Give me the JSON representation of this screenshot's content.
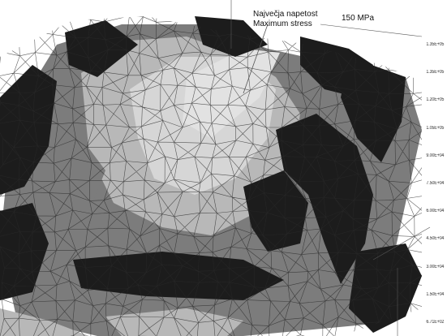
{
  "annotation": {
    "label_slovene": "Največja napetost",
    "label_english": "Maximum stress",
    "value": "150 MPa"
  },
  "legend": {
    "ticks": [
      "1.35E+05",
      "1.35E+05",
      "1.20E+05",
      "1.05E+05",
      "9.00E+04",
      "7.50E+04",
      "6.00E+04",
      "4.50E+04",
      "3.00E+04",
      "1.50E+04",
      "6.71E+02"
    ]
  },
  "colors": {
    "dark": "#1c1c1c",
    "mid": "#7c7c7c",
    "light": "#b8b8b8",
    "lighter": "#d6d6d6",
    "mesh": "#2a2a2a"
  }
}
